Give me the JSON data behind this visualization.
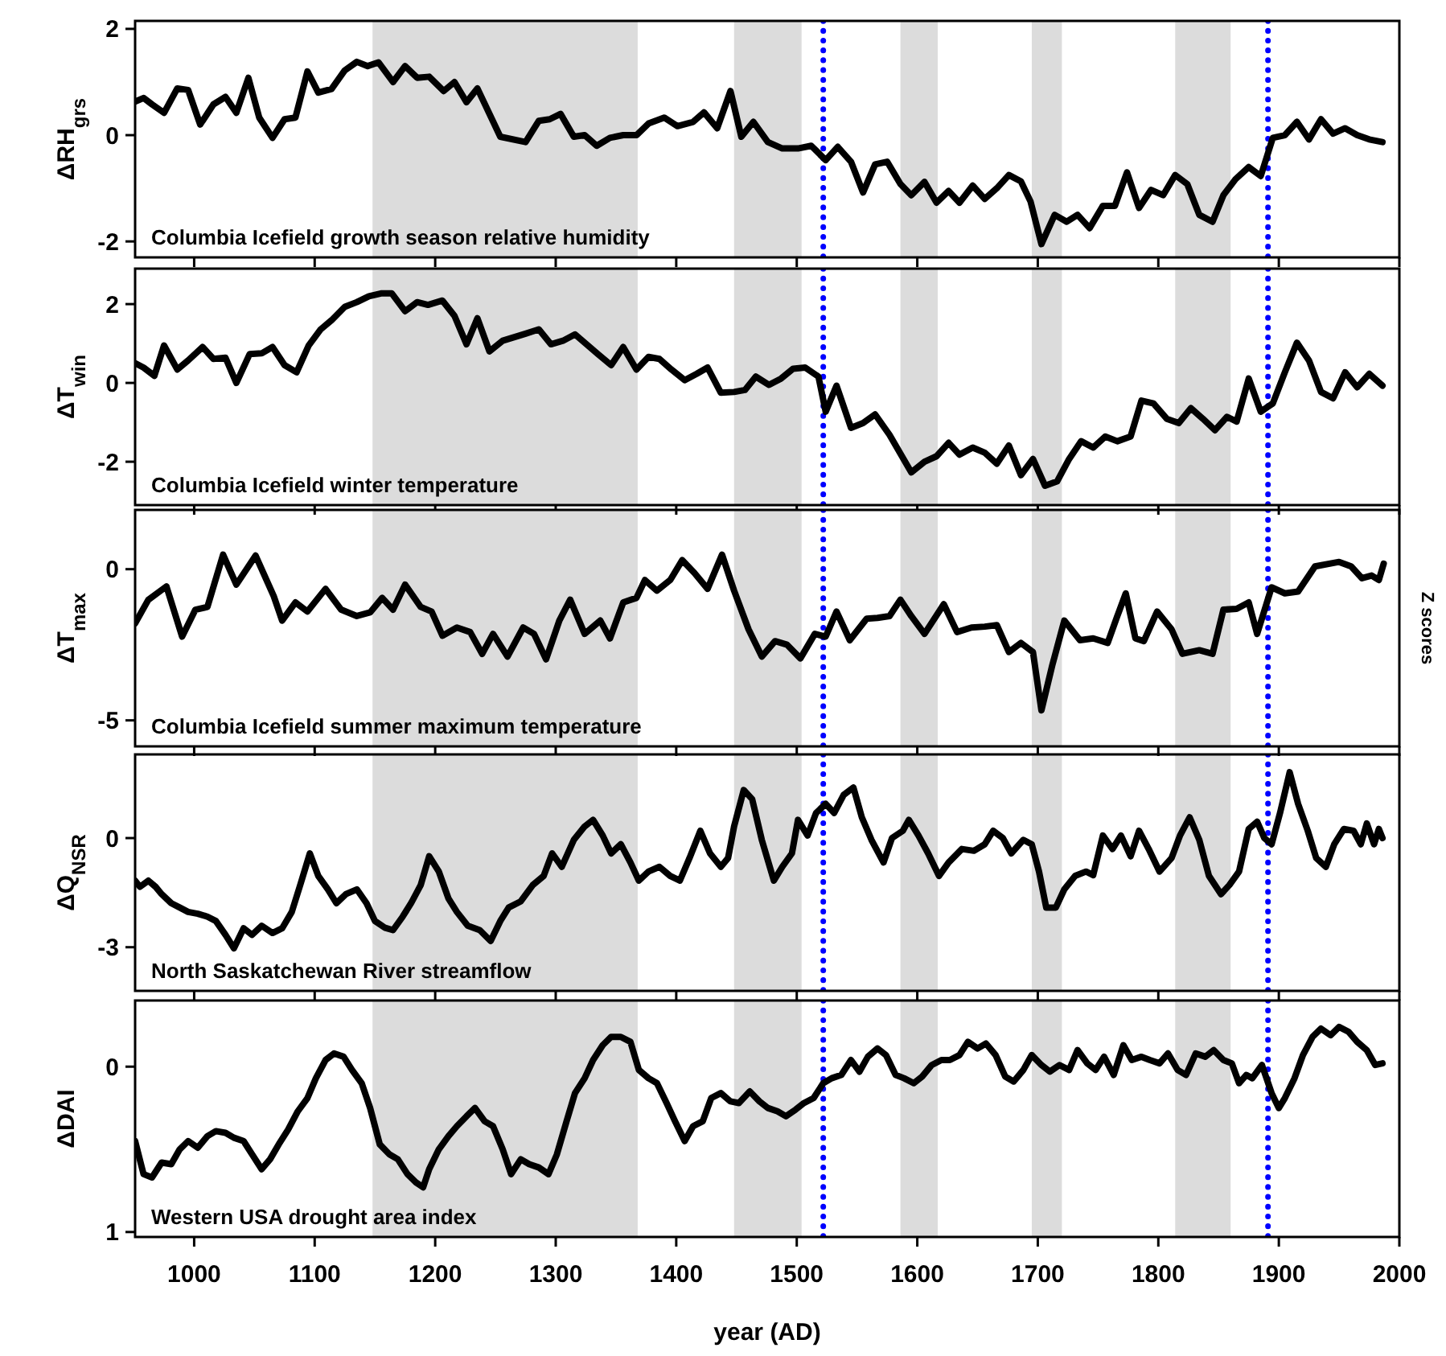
{
  "chart_data": [
    {
      "type": "line",
      "ylabel": "ΔRH$_{grs}$",
      "annotations": [
        "Columbia Icefield growth season relative humidity"
      ],
      "color": "#000000",
      "xlim": [
        951,
        2000
      ],
      "xticks": [
        1000,
        1100,
        1200,
        1300,
        1400,
        1500,
        1600,
        1700,
        1800,
        1900,
        2000
      ],
      "ylim": [
        -2.3,
        2.15
      ],
      "yticks": [
        -2,
        0,
        2
      ],
      "tick_labels": "y",
      "bands": [
        {
          "axis": "x",
          "from": 1148,
          "to": 1368,
          "color": "#dcdcdc"
        },
        {
          "axis": "x",
          "from": 1448,
          "to": 1504,
          "color": "#dcdcdc"
        },
        {
          "axis": "x",
          "from": 1586,
          "to": 1617,
          "color": "#dcdcdc"
        },
        {
          "axis": "x",
          "from": 1695,
          "to": 1720,
          "color": "#dcdcdc"
        },
        {
          "axis": "x",
          "from": 1814,
          "to": 1860,
          "color": "#dcdcdc"
        }
      ],
      "ref_lines": [
        {
          "axis": "x",
          "value": 1522,
          "color": "#0000ff",
          "line_style": "dotted"
        },
        {
          "axis": "x",
          "value": 1891,
          "color": "#0000ff",
          "line_style": "dotted"
        }
      ],
      "x": [
        951,
        958,
        965,
        975,
        986,
        995,
        1005,
        1016,
        1026,
        1035,
        1045,
        1054,
        1065,
        1075,
        1084,
        1094,
        1103,
        1114,
        1125,
        1135,
        1144,
        1153,
        1165,
        1175,
        1185,
        1195,
        1207,
        1216,
        1226,
        1235,
        1254,
        1275,
        1286,
        1295,
        1304,
        1315,
        1324,
        1334,
        1345,
        1356,
        1367,
        1377,
        1390,
        1401,
        1414,
        1423,
        1434,
        1445,
        1454,
        1464,
        1476,
        1488,
        1501,
        1512,
        1524,
        1534,
        1545,
        1555,
        1565,
        1575,
        1586,
        1595,
        1606,
        1616,
        1626,
        1635,
        1646,
        1656,
        1666,
        1676,
        1686,
        1694,
        1703,
        1714,
        1724,
        1733,
        1743,
        1754,
        1764,
        1774,
        1784,
        1794,
        1804,
        1814,
        1824,
        1834,
        1845,
        1854,
        1864,
        1875,
        1885,
        1895,
        1905,
        1915,
        1925,
        1935,
        1945,
        1955,
        1965,
        1975,
        1986
      ],
      "values": [
        0.63,
        0.7,
        0.58,
        0.42,
        0.88,
        0.85,
        0.2,
        0.58,
        0.72,
        0.42,
        1.08,
        0.33,
        -0.05,
        0.3,
        0.33,
        1.2,
        0.8,
        0.87,
        1.22,
        1.38,
        1.3,
        1.37,
        1.0,
        1.3,
        1.08,
        1.1,
        0.83,
        1.0,
        0.62,
        0.88,
        -0.03,
        -0.13,
        0.27,
        0.3,
        0.4,
        -0.03,
        0,
        -0.2,
        -0.05,
        0,
        0,
        0.22,
        0.33,
        0.17,
        0.25,
        0.43,
        0.13,
        0.83,
        -0.03,
        0.25,
        -0.13,
        -0.25,
        -0.25,
        -0.2,
        -0.47,
        -0.22,
        -0.5,
        -1.08,
        -0.55,
        -0.5,
        -0.92,
        -1.13,
        -0.88,
        -1.27,
        -1.05,
        -1.27,
        -0.95,
        -1.2,
        -1.0,
        -0.75,
        -0.87,
        -1.25,
        -2.05,
        -1.5,
        -1.63,
        -1.5,
        -1.75,
        -1.33,
        -1.33,
        -0.7,
        -1.37,
        -1.03,
        -1.13,
        -0.75,
        -0.92,
        -1.5,
        -1.63,
        -1.13,
        -0.83,
        -0.6,
        -0.77,
        -0.05,
        0,
        0.25,
        -0.08,
        0.3,
        0.03,
        0.13,
        0,
        -0.08,
        -0.13
      ]
    },
    {
      "type": "line",
      "ylabel": "ΔT$_{win}$",
      "annotations": [
        "Columbia Icefield winter temperature"
      ],
      "color": "#000000",
      "xlim": [
        951,
        2000
      ],
      "xticks": [
        1000,
        1100,
        1200,
        1300,
        1400,
        1500,
        1600,
        1700,
        1800,
        1900,
        2000
      ],
      "ylim": [
        -3.1,
        2.9
      ],
      "yticks": [
        -2,
        0,
        2
      ],
      "tick_labels": "y",
      "bands": [
        {
          "axis": "x",
          "from": 1148,
          "to": 1368,
          "color": "#dcdcdc"
        },
        {
          "axis": "x",
          "from": 1448,
          "to": 1504,
          "color": "#dcdcdc"
        },
        {
          "axis": "x",
          "from": 1586,
          "to": 1617,
          "color": "#dcdcdc"
        },
        {
          "axis": "x",
          "from": 1695,
          "to": 1720,
          "color": "#dcdcdc"
        },
        {
          "axis": "x",
          "from": 1814,
          "to": 1860,
          "color": "#dcdcdc"
        }
      ],
      "ref_lines": [
        {
          "axis": "x",
          "value": 1522,
          "color": "#0000ff",
          "line_style": "dotted"
        },
        {
          "axis": "x",
          "value": 1891,
          "color": "#0000ff",
          "line_style": "dotted"
        }
      ],
      "x": [
        951,
        958,
        967,
        975,
        986,
        995,
        1007,
        1016,
        1026,
        1035,
        1046,
        1056,
        1065,
        1075,
        1085,
        1095,
        1105,
        1114,
        1125,
        1135,
        1145,
        1155,
        1164,
        1175,
        1185,
        1194,
        1206,
        1216,
        1226,
        1235,
        1245,
        1256,
        1275,
        1286,
        1296,
        1306,
        1316,
        1335,
        1346,
        1356,
        1367,
        1377,
        1386,
        1396,
        1407,
        1417,
        1426,
        1437,
        1448,
        1457,
        1466,
        1477,
        1487,
        1497,
        1507,
        1518,
        1524,
        1533,
        1545,
        1555,
        1565,
        1577,
        1595,
        1606,
        1616,
        1626,
        1635,
        1646,
        1656,
        1666,
        1676,
        1686,
        1696,
        1706,
        1716,
        1726,
        1736,
        1746,
        1756,
        1766,
        1777,
        1786,
        1796,
        1807,
        1817,
        1827,
        1837,
        1847,
        1857,
        1865,
        1875,
        1885,
        1895,
        1905,
        1915,
        1925,
        1935,
        1945,
        1955,
        1965,
        1975,
        1986
      ],
      "values": [
        0.5,
        0.39,
        0.18,
        0.95,
        0.34,
        0.57,
        0.91,
        0.61,
        0.64,
        0,
        0.73,
        0.75,
        0.91,
        0.45,
        0.27,
        0.95,
        1.36,
        1.59,
        1.93,
        2.05,
        2.2,
        2.27,
        2.27,
        1.82,
        2.05,
        1.98,
        2.09,
        1.7,
        0.98,
        1.64,
        0.8,
        1.07,
        1.25,
        1.36,
        0.98,
        1.07,
        1.23,
        0.73,
        0.45,
        0.91,
        0.34,
        0.66,
        0.61,
        0.34,
        0.07,
        0.23,
        0.39,
        -0.25,
        -0.23,
        -0.18,
        0.16,
        -0.05,
        0.11,
        0.36,
        0.39,
        0.16,
        -0.73,
        -0.07,
        -1.14,
        -1.02,
        -0.8,
        -1.32,
        -2.27,
        -2.0,
        -1.86,
        -1.52,
        -1.82,
        -1.64,
        -1.77,
        -2.05,
        -1.59,
        -2.34,
        -1.93,
        -2.61,
        -2.5,
        -1.93,
        -1.48,
        -1.64,
        -1.36,
        -1.48,
        -1.36,
        -0.45,
        -0.52,
        -0.91,
        -1.02,
        -0.64,
        -0.91,
        -1.2,
        -0.86,
        -0.98,
        0.11,
        -0.73,
        -0.52,
        0.27,
        1.02,
        0.57,
        -0.23,
        -0.39,
        0.27,
        -0.11,
        0.23,
        -0.07
      ]
    },
    {
      "type": "line",
      "ylabel": "ΔT$_{max}$",
      "y2label": "Z scores",
      "annotations": [
        "Columbia Icefield summer maximum temperature"
      ],
      "color": "#000000",
      "xlim": [
        951,
        2000
      ],
      "xticks": [
        1000,
        1100,
        1200,
        1300,
        1400,
        1500,
        1600,
        1700,
        1800,
        1900,
        2000
      ],
      "ylim": [
        -5.86,
        1.96
      ],
      "yticks": [
        -5,
        0
      ],
      "tick_labels": "y",
      "bands": [
        {
          "axis": "x",
          "from": 1148,
          "to": 1368,
          "color": "#dcdcdc"
        },
        {
          "axis": "x",
          "from": 1448,
          "to": 1504,
          "color": "#dcdcdc"
        },
        {
          "axis": "x",
          "from": 1586,
          "to": 1617,
          "color": "#dcdcdc"
        },
        {
          "axis": "x",
          "from": 1695,
          "to": 1720,
          "color": "#dcdcdc"
        },
        {
          "axis": "x",
          "from": 1814,
          "to": 1860,
          "color": "#dcdcdc"
        }
      ],
      "ref_lines": [
        {
          "axis": "x",
          "value": 1522,
          "color": "#0000ff",
          "line_style": "dotted"
        },
        {
          "axis": "x",
          "value": 1891,
          "color": "#0000ff",
          "line_style": "dotted"
        }
      ],
      "x": [
        951,
        962,
        977,
        990,
        1001,
        1011,
        1024,
        1035,
        1051,
        1066,
        1073,
        1084,
        1094,
        1109,
        1122,
        1135,
        1146,
        1156,
        1165,
        1175,
        1188,
        1197,
        1206,
        1218,
        1229,
        1239,
        1248,
        1260,
        1273,
        1282,
        1292,
        1303,
        1312,
        1324,
        1337,
        1345,
        1356,
        1367,
        1374,
        1384,
        1395,
        1405,
        1415,
        1426,
        1438,
        1448,
        1460,
        1471,
        1482,
        1492,
        1503,
        1515,
        1524,
        1533,
        1544,
        1558,
        1567,
        1577,
        1586,
        1595,
        1606,
        1622,
        1633,
        1645,
        1656,
        1666,
        1676,
        1686,
        1696,
        1703,
        1712,
        1722,
        1735,
        1746,
        1758,
        1766,
        1773,
        1781,
        1788,
        1799,
        1811,
        1820,
        1834,
        1845,
        1854,
        1865,
        1875,
        1882,
        1894,
        1905,
        1916,
        1930,
        1950,
        1960,
        1969,
        1977,
        1983,
        1987
      ],
      "values": [
        -1.79,
        -1.01,
        -0.57,
        -2.23,
        -1.34,
        -1.25,
        0.48,
        -0.51,
        0.45,
        -0.89,
        -1.7,
        -1.1,
        -1.4,
        -0.65,
        -1.34,
        -1.55,
        -1.43,
        -0.95,
        -1.34,
        -0.51,
        -1.25,
        -1.4,
        -2.2,
        -1.93,
        -2.08,
        -2.8,
        -2.14,
        -2.89,
        -1.93,
        -2.14,
        -2.98,
        -1.7,
        -1.01,
        -2.14,
        -1.7,
        -2.29,
        -1.1,
        -0.95,
        -0.36,
        -0.71,
        -0.36,
        0.3,
        -0.12,
        -0.65,
        0.48,
        -0.71,
        -1.99,
        -2.89,
        -2.38,
        -2.5,
        -2.95,
        -2.14,
        -2.23,
        -1.4,
        -2.35,
        -1.64,
        -1.61,
        -1.55,
        -1.01,
        -1.55,
        -2.14,
        -1.16,
        -2.08,
        -1.93,
        -1.9,
        -1.85,
        -2.74,
        -2.44,
        -2.74,
        -4.67,
        -3.18,
        -1.7,
        -2.35,
        -2.29,
        -2.44,
        -1.55,
        -0.8,
        -2.29,
        -2.38,
        -1.4,
        -1.99,
        -2.8,
        -2.68,
        -2.8,
        -1.34,
        -1.31,
        -1.1,
        -2.14,
        -0.6,
        -0.8,
        -0.74,
        0.09,
        0.24,
        0.09,
        -0.3,
        -0.21,
        -0.36,
        0.18
      ]
    },
    {
      "type": "line",
      "ylabel": "ΔQ$_{NSR}$",
      "annotations": [
        "North Saskatchewan River streamflow"
      ],
      "color": "#000000",
      "xlim": [
        951,
        2000
      ],
      "xticks": [
        1000,
        1100,
        1200,
        1300,
        1400,
        1500,
        1600,
        1700,
        1800,
        1900,
        2000
      ],
      "ylim": [
        -4.2,
        2.3
      ],
      "yticks": [
        -3,
        0
      ],
      "tick_labels": "y",
      "bands": [
        {
          "axis": "x",
          "from": 1148,
          "to": 1368,
          "color": "#dcdcdc"
        },
        {
          "axis": "x",
          "from": 1448,
          "to": 1504,
          "color": "#dcdcdc"
        },
        {
          "axis": "x",
          "from": 1586,
          "to": 1617,
          "color": "#dcdcdc"
        },
        {
          "axis": "x",
          "from": 1695,
          "to": 1720,
          "color": "#dcdcdc"
        },
        {
          "axis": "x",
          "from": 1814,
          "to": 1860,
          "color": "#dcdcdc"
        }
      ],
      "ref_lines": [
        {
          "axis": "x",
          "value": 1522,
          "color": "#0000ff",
          "line_style": "dotted"
        },
        {
          "axis": "x",
          "value": 1891,
          "color": "#0000ff",
          "line_style": "dotted"
        }
      ],
      "x": [
        951,
        955,
        962,
        968,
        973,
        981,
        988,
        995,
        1003,
        1011,
        1018,
        1026,
        1033,
        1041,
        1048,
        1056,
        1065,
        1073,
        1081,
        1088,
        1096,
        1103,
        1111,
        1118,
        1126,
        1135,
        1143,
        1150,
        1158,
        1165,
        1173,
        1180,
        1188,
        1195,
        1203,
        1211,
        1218,
        1227,
        1237,
        1246,
        1254,
        1261,
        1271,
        1281,
        1290,
        1297,
        1305,
        1315,
        1324,
        1331,
        1339,
        1346,
        1354,
        1362,
        1369,
        1377,
        1386,
        1395,
        1403,
        1411,
        1420,
        1428,
        1437,
        1443,
        1448,
        1456,
        1463,
        1471,
        1481,
        1488,
        1496,
        1501,
        1509,
        1516,
        1524,
        1531,
        1539,
        1547,
        1554,
        1562,
        1572,
        1579,
        1588,
        1593,
        1601,
        1609,
        1618,
        1626,
        1637,
        1647,
        1656,
        1663,
        1671,
        1678,
        1688,
        1695,
        1701,
        1707,
        1715,
        1722,
        1731,
        1740,
        1746,
        1754,
        1762,
        1769,
        1777,
        1784,
        1792,
        1801,
        1811,
        1818,
        1826,
        1834,
        1842,
        1852,
        1859,
        1867,
        1875,
        1882,
        1888,
        1894,
        1901,
        1909,
        1916,
        1924,
        1931,
        1939,
        1946,
        1954,
        1962,
        1968,
        1973,
        1979,
        1983,
        1986
      ],
      "values": [
        -1.17,
        -1.34,
        -1.17,
        -1.34,
        -1.54,
        -1.79,
        -1.91,
        -2.03,
        -2.08,
        -2.16,
        -2.28,
        -2.66,
        -3.03,
        -2.48,
        -2.66,
        -2.41,
        -2.61,
        -2.48,
        -2.03,
        -1.29,
        -0.42,
        -1.04,
        -1.41,
        -1.79,
        -1.54,
        -1.41,
        -1.79,
        -2.28,
        -2.46,
        -2.53,
        -2.16,
        -1.79,
        -1.29,
        -0.5,
        -0.92,
        -1.66,
        -2.03,
        -2.41,
        -2.53,
        -2.83,
        -2.28,
        -1.91,
        -1.74,
        -1.29,
        -1.04,
        -0.42,
        -0.79,
        -0.05,
        0.32,
        0.5,
        0.07,
        -0.42,
        -0.17,
        -0.67,
        -1.17,
        -0.92,
        -0.79,
        -1.04,
        -1.17,
        -0.55,
        0.2,
        -0.42,
        -0.79,
        -0.55,
        0.32,
        1.32,
        1.07,
        -0.05,
        -1.17,
        -0.79,
        -0.42,
        0.5,
        0.07,
        0.69,
        0.94,
        0.69,
        1.19,
        1.39,
        0.57,
        -0.05,
        -0.67,
        0,
        0.2,
        0.5,
        0.07,
        -0.42,
        -1.04,
        -0.67,
        -0.3,
        -0.35,
        -0.17,
        0.2,
        0,
        -0.42,
        -0.05,
        -0.17,
        -0.92,
        -1.91,
        -1.91,
        -1.41,
        -1.04,
        -0.92,
        -1.02,
        0.07,
        -0.3,
        0.07,
        -0.5,
        0.2,
        -0.3,
        -0.92,
        -0.55,
        0.07,
        0.57,
        -0.05,
        -1.04,
        -1.54,
        -1.29,
        -0.92,
        0.25,
        0.45,
        0,
        -0.17,
        0.69,
        1.81,
        0.94,
        0.2,
        -0.55,
        -0.79,
        -0.17,
        0.25,
        0.2,
        -0.17,
        0.4,
        -0.17,
        0.25,
        0
      ]
    },
    {
      "type": "line",
      "ylabel": "ΔDAI",
      "xlabel": "year (AD)",
      "annotations": [
        "Western USA drought area index"
      ],
      "color": "#000000",
      "xlim": [
        951,
        2000
      ],
      "xticks": [
        1000,
        1100,
        1200,
        1300,
        1400,
        1500,
        1600,
        1700,
        1800,
        1900,
        2000
      ],
      "ylim": [
        1.03,
        -0.4
      ],
      "yticks": [
        0,
        1
      ],
      "bands": [
        {
          "axis": "x",
          "from": 1148,
          "to": 1368,
          "color": "#dcdcdc"
        },
        {
          "axis": "x",
          "from": 1448,
          "to": 1504,
          "color": "#dcdcdc"
        },
        {
          "axis": "x",
          "from": 1586,
          "to": 1617,
          "color": "#dcdcdc"
        },
        {
          "axis": "x",
          "from": 1695,
          "to": 1720,
          "color": "#dcdcdc"
        },
        {
          "axis": "x",
          "from": 1814,
          "to": 1860,
          "color": "#dcdcdc"
        }
      ],
      "ref_lines": [
        {
          "axis": "x",
          "value": 1522,
          "color": "#0000ff",
          "line_style": "dotted"
        },
        {
          "axis": "x",
          "value": 1891,
          "color": "#0000ff",
          "line_style": "dotted"
        }
      ],
      "x": [
        951,
        958,
        965,
        973,
        981,
        988,
        995,
        1003,
        1011,
        1018,
        1026,
        1033,
        1041,
        1048,
        1056,
        1063,
        1071,
        1078,
        1086,
        1094,
        1101,
        1109,
        1116,
        1124,
        1131,
        1139,
        1146,
        1154,
        1162,
        1169,
        1177,
        1184,
        1190,
        1195,
        1203,
        1211,
        1218,
        1226,
        1233,
        1241,
        1248,
        1256,
        1263,
        1271,
        1278,
        1286,
        1294,
        1301,
        1309,
        1316,
        1324,
        1331,
        1339,
        1346,
        1354,
        1362,
        1369,
        1377,
        1384,
        1392,
        1399,
        1407,
        1414,
        1422,
        1429,
        1437,
        1445,
        1452,
        1461,
        1469,
        1476,
        1484,
        1491,
        1499,
        1506,
        1514,
        1522,
        1529,
        1537,
        1545,
        1552,
        1559,
        1567,
        1574,
        1582,
        1589,
        1597,
        1604,
        1612,
        1620,
        1627,
        1635,
        1642,
        1650,
        1657,
        1665,
        1673,
        1680,
        1688,
        1695,
        1703,
        1710,
        1718,
        1726,
        1733,
        1741,
        1748,
        1755,
        1763,
        1771,
        1778,
        1786,
        1793,
        1801,
        1808,
        1816,
        1823,
        1831,
        1839,
        1846,
        1854,
        1861,
        1867,
        1873,
        1878,
        1886,
        1894,
        1900,
        1905,
        1913,
        1920,
        1928,
        1935,
        1943,
        1950,
        1958,
        1965,
        1973,
        1980,
        1986
      ],
      "values": [
        0.45,
        0.65,
        0.67,
        0.58,
        0.59,
        0.5,
        0.45,
        0.49,
        0.42,
        0.39,
        0.4,
        0.43,
        0.45,
        0.53,
        0.62,
        0.56,
        0.46,
        0.38,
        0.27,
        0.19,
        0.07,
        -0.04,
        -0.08,
        -0.06,
        0.02,
        0.1,
        0.25,
        0.47,
        0.53,
        0.56,
        0.65,
        0.7,
        0.73,
        0.62,
        0.5,
        0.42,
        0.36,
        0.3,
        0.25,
        0.33,
        0.36,
        0.5,
        0.65,
        0.56,
        0.59,
        0.61,
        0.65,
        0.53,
        0.33,
        0.16,
        0.07,
        -0.04,
        -0.13,
        -0.18,
        -0.18,
        -0.15,
        0.02,
        0.07,
        0.1,
        0.22,
        0.33,
        0.45,
        0.36,
        0.33,
        0.19,
        0.16,
        0.21,
        0.22,
        0.15,
        0.21,
        0.25,
        0.27,
        0.3,
        0.26,
        0.22,
        0.19,
        0.1,
        0.07,
        0.05,
        -0.04,
        0.03,
        -0.06,
        -0.11,
        -0.07,
        0.05,
        0.07,
        0.1,
        0.06,
        -0.01,
        -0.04,
        -0.04,
        -0.07,
        -0.15,
        -0.11,
        -0.14,
        -0.07,
        0.06,
        0.09,
        0.02,
        -0.07,
        -0.01,
        0.03,
        -0.01,
        0.02,
        -0.1,
        -0.02,
        0.02,
        -0.06,
        0.05,
        -0.13,
        -0.04,
        -0.06,
        -0.04,
        -0.02,
        -0.08,
        0.02,
        0.05,
        -0.08,
        -0.06,
        -0.1,
        -0.04,
        -0.02,
        0.1,
        0.05,
        0.07,
        -0.01,
        0.16,
        0.25,
        0.19,
        0.07,
        -0.07,
        -0.18,
        -0.23,
        -0.19,
        -0.24,
        -0.21,
        -0.15,
        -0.1,
        -0.01,
        -0.02
      ]
    }
  ]
}
